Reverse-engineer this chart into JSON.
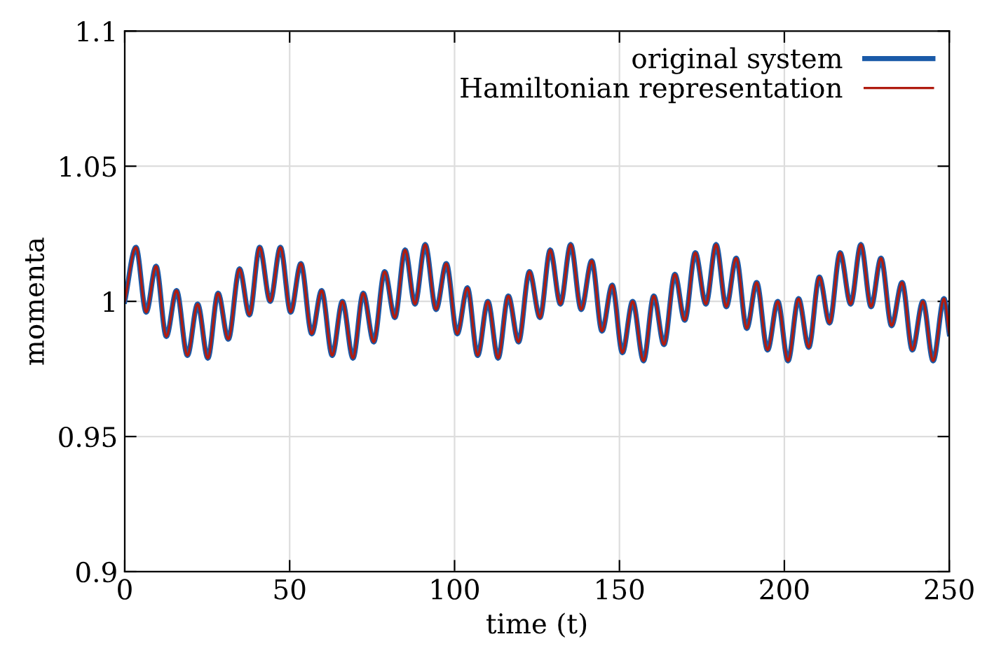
{
  "chart_data": {
    "type": "line",
    "xlabel": "time (t)",
    "ylabel": "momenta",
    "x": [
      0,
      3.4,
      6.5,
      9.5,
      12.6,
      15.7,
      19.0,
      22.1,
      25.2,
      28.3,
      31.4,
      34.8,
      37.8,
      40.9,
      44.1,
      47.2,
      50.3,
      53.4,
      56.7,
      59.7,
      62.9,
      66.0,
      69.2,
      72.3,
      75.5,
      78.8,
      81.9,
      85.0,
      88.0,
      91.1,
      94.4,
      97.5,
      100.8,
      103.9,
      107.0,
      110.1,
      113.2,
      116.3,
      119.4,
      122.7,
      125.9,
      129.0,
      132.1,
      135.2,
      138.4,
      141.6,
      144.7,
      147.8,
      150.9,
      154.0,
      157.3,
      160.4,
      163.5,
      166.8,
      169.8,
      173.0,
      176.2,
      179.3,
      182.4,
      185.4,
      188.6,
      191.6,
      194.9,
      198.0,
      201.1,
      204.3,
      207.4,
      210.6,
      213.7,
      216.9,
      220.1,
      223.2,
      226.3,
      229.3,
      232.5,
      235.7,
      238.8,
      242.0,
      245.1,
      248.4,
      250
    ],
    "series": [
      {
        "name": "original system",
        "color": "#1a5aa8",
        "values": [
          1.0,
          1.02,
          0.996,
          1.013,
          0.987,
          1.004,
          0.98,
          0.999,
          0.979,
          1.003,
          0.986,
          1.012,
          0.995,
          1.02,
          1.0,
          1.02,
          0.996,
          1.014,
          0.988,
          1.004,
          0.98,
          1.0,
          0.979,
          1.003,
          0.985,
          1.011,
          0.994,
          1.019,
          0.999,
          1.021,
          0.997,
          1.014,
          0.988,
          1.005,
          0.98,
          1.0,
          0.979,
          1.002,
          0.985,
          1.011,
          0.994,
          1.019,
          0.999,
          1.021,
          0.997,
          1.015,
          0.989,
          1.006,
          0.981,
          1.0,
          0.978,
          1.002,
          0.984,
          1.01,
          0.993,
          1.018,
          0.999,
          1.021,
          0.998,
          1.016,
          0.99,
          1.007,
          0.982,
          1.0,
          0.978,
          1.001,
          0.983,
          1.009,
          0.992,
          1.018,
          0.999,
          1.021,
          0.998,
          1.016,
          0.991,
          1.007,
          0.982,
          1.0,
          0.978,
          1.001,
          0.988
        ]
      },
      {
        "name": "Hamiltonian representation",
        "color": "#b01c10",
        "values": [
          1.0,
          1.02,
          0.996,
          1.013,
          0.987,
          1.004,
          0.98,
          0.999,
          0.979,
          1.003,
          0.986,
          1.012,
          0.995,
          1.02,
          1.0,
          1.02,
          0.996,
          1.014,
          0.988,
          1.004,
          0.98,
          1.0,
          0.979,
          1.003,
          0.985,
          1.011,
          0.994,
          1.019,
          0.999,
          1.021,
          0.997,
          1.014,
          0.988,
          1.005,
          0.98,
          1.0,
          0.979,
          1.002,
          0.985,
          1.011,
          0.994,
          1.019,
          0.999,
          1.021,
          0.997,
          1.015,
          0.989,
          1.006,
          0.981,
          1.0,
          0.978,
          1.002,
          0.984,
          1.01,
          0.993,
          1.018,
          0.999,
          1.021,
          0.998,
          1.016,
          0.99,
          1.007,
          0.982,
          1.0,
          0.978,
          1.001,
          0.983,
          1.009,
          0.992,
          1.018,
          0.999,
          1.021,
          0.998,
          1.016,
          0.991,
          1.007,
          0.982,
          1.0,
          0.978,
          1.001,
          0.988
        ]
      }
    ],
    "xlim": [
      0,
      250
    ],
    "xticks": [
      0,
      50,
      100,
      150,
      200,
      250
    ],
    "ylim": [
      0.9,
      1.1
    ],
    "yticks": [
      0.9,
      0.95,
      1,
      1.05,
      1.1
    ],
    "grid": true,
    "legend": "top right",
    "line_style": "solid",
    "marker": "none"
  }
}
